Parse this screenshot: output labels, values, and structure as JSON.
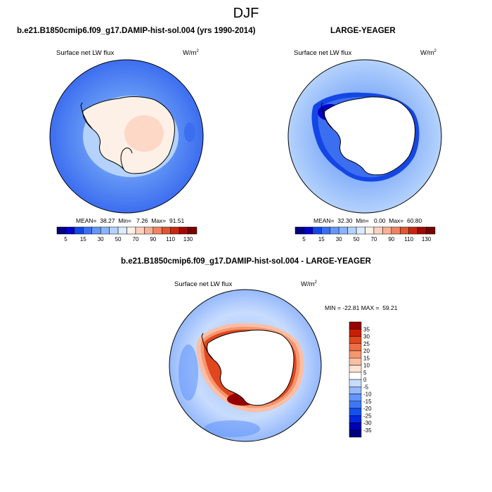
{
  "page": {
    "title": "DJF",
    "caption_top_left": "b.e21.B1850cmip6.f09_g17.DAMIP-hist-sol.004 (yrs 1990-2014)",
    "caption_top_right": "LARGE-YEAGER",
    "caption_bottom": "b.e21.B1850cmip6.f09_g17.DAMIP-hist-sol.004 - LARGE-YEAGER"
  },
  "chart_data": [
    {
      "type": "heatmap",
      "projection": "south polar stereographic",
      "title": "b.e21.B1850cmip6.f09_g17.DAMIP-hist-sol.004 (yrs 1990-2014)",
      "field_label": "Surface net LW flux",
      "units_label": "W/m",
      "units_exp": "2",
      "stats_text": "MEAN=  38.27  Min=   7.26  Max=  91.51",
      "stats": {
        "mean": 38.27,
        "min": 7.26,
        "max": 91.51
      },
      "colorbar": {
        "orientation": "horizontal",
        "levels": [
          5,
          10,
          15,
          20,
          30,
          40,
          50,
          60,
          70,
          80,
          90,
          100,
          110,
          120,
          130
        ],
        "tick_labels": [
          "5",
          "15",
          "30",
          "50",
          "70",
          "90",
          "110",
          "130"
        ],
        "colors": [
          "#00007f",
          "#0000c8",
          "#1446e6",
          "#3c6ef0",
          "#6496f5",
          "#8cb4fa",
          "#b4d2fc",
          "#dceafd",
          "#fdf0e6",
          "#fcd2be",
          "#f8b096",
          "#f08264",
          "#e05532",
          "#c8280f",
          "#a00a00",
          "#780000"
        ]
      },
      "approx_values": {
        "ocean_north": 15,
        "ocean_near_ice": 30,
        "antarctic_interior": 70,
        "antarctic_coast": 55
      }
    },
    {
      "type": "heatmap",
      "projection": "south polar stereographic",
      "title": "LARGE-YEAGER",
      "field_label": "Surface net LW flux",
      "units_label": "W/m",
      "units_exp": "2",
      "stats_text": "MEAN=  32.30  Min=   0.00  Max=  60.80",
      "stats": {
        "mean": 32.3,
        "min": 0.0,
        "max": 60.8
      },
      "colorbar": {
        "orientation": "horizontal",
        "levels": [
          5,
          10,
          15,
          20,
          30,
          40,
          50,
          60,
          70,
          80,
          90,
          100,
          110,
          120,
          130
        ],
        "tick_labels": [
          "5",
          "15",
          "30",
          "50",
          "70",
          "90",
          "110",
          "130"
        ],
        "colors": [
          "#00007f",
          "#0000c8",
          "#1446e6",
          "#3c6ef0",
          "#6496f5",
          "#8cb4fa",
          "#b4d2fc",
          "#dceafd",
          "#fdf0e6",
          "#fcd2be",
          "#f8b096",
          "#f08264",
          "#e05532",
          "#c8280f",
          "#a00a00",
          "#780000"
        ]
      },
      "approx_values": {
        "open_ocean": 40,
        "sea_ice_edge": 10,
        "antarctic_continent": "missing"
      }
    },
    {
      "type": "heatmap",
      "projection": "south polar stereographic",
      "title": "b.e21.B1850cmip6.f09_g17.DAMIP-hist-sol.004 - LARGE-YEAGER",
      "field_label": "Surface net LW flux",
      "units_label": "W/m",
      "units_exp": "2",
      "stats_text": "MIN = -22.81 MAX =  59.21",
      "stats": {
        "min": -22.81,
        "max": 59.21
      },
      "colorbar": {
        "orientation": "vertical",
        "levels": [
          -35,
          -30,
          -25,
          -20,
          -15,
          -10,
          -5,
          0,
          5,
          10,
          15,
          20,
          25,
          30,
          35
        ],
        "tick_labels": [
          "35",
          "30",
          "25",
          "20",
          "15",
          "10",
          "5",
          "0",
          "-5",
          "-10",
          "-15",
          "-20",
          "-25",
          "-30",
          "-35"
        ],
        "colors": [
          "#00007f",
          "#0000b4",
          "#0028dc",
          "#1450f0",
          "#3c78f5",
          "#6496fa",
          "#96b9fc",
          "#c8dcfe",
          "#ffffff",
          "#fde1d2",
          "#fbbea5",
          "#f5966e",
          "#ee6e46",
          "#e1461e",
          "#c81e05",
          "#960000"
        ]
      },
      "approx_values": {
        "open_ocean": -5,
        "sea_ice_edge": 25,
        "antarctic_continent": "missing"
      }
    }
  ]
}
